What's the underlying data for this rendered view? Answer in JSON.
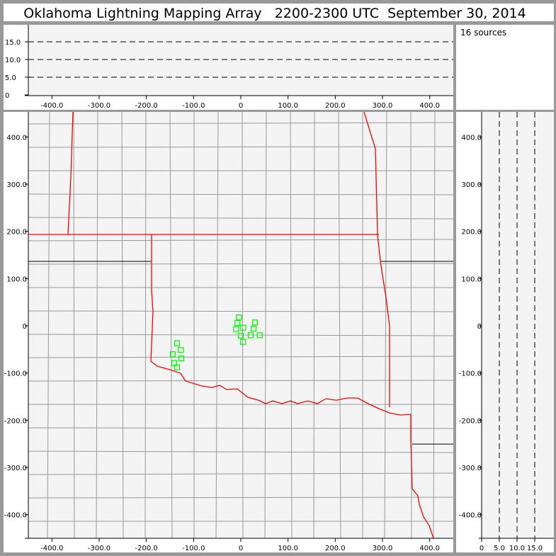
{
  "title": "Oklahoma Lightning Mapping Array   2200-2300 UTC  September 30, 2014",
  "source_count_label": "16 sources",
  "colors": {
    "frame": "#999999",
    "plot_bg": "#f4f4f4",
    "state_border": "#ff0000",
    "county_border": "#999999",
    "source_marker": "#00ff00"
  },
  "chart_data": [
    {
      "type": "scatter",
      "panel": "plan-view",
      "xlim": [
        -460,
        440
      ],
      "ylim": [
        -445,
        445
      ],
      "xticks": [
        "-400.0",
        "-300.0",
        "-200.0",
        "-100.0",
        "0",
        "100.0",
        "200.0",
        "300.0",
        "400.0"
      ],
      "xtick_values": [
        -400,
        -300,
        -200,
        -100,
        0,
        100,
        200,
        300,
        400
      ],
      "yticks": [
        "400.0",
        "300.0",
        "200.0",
        "100.0",
        "0",
        "-100.0",
        "-200.0",
        "-300.0",
        "-400.0"
      ],
      "ytick_values": [
        400,
        300,
        200,
        100,
        0,
        -100,
        -200,
        -300,
        -400
      ],
      "marker": "square-outline",
      "points": [
        [
          -135,
          -37
        ],
        [
          -127,
          -51
        ],
        [
          -144,
          -60
        ],
        [
          -126,
          -69
        ],
        [
          -141,
          -79
        ],
        [
          -135,
          -88
        ],
        [
          -4,
          18
        ],
        [
          -7,
          6
        ],
        [
          30,
          7
        ],
        [
          -10,
          -7
        ],
        [
          5,
          -4
        ],
        [
          27,
          -6
        ],
        [
          0,
          -21
        ],
        [
          21,
          -20
        ],
        [
          40,
          -20
        ],
        [
          5,
          -34
        ]
      ]
    },
    {
      "type": "scatter",
      "panel": "east-west-altitude",
      "xlim": [
        -460,
        440
      ],
      "ylim": [
        0,
        20
      ],
      "yticks": [
        "0",
        "5.0",
        "10.0",
        "15.0"
      ],
      "ytick_values": [
        0,
        5,
        10,
        15
      ],
      "xticks": [
        "-400.0",
        "-300.0",
        "-200.0",
        "-100.0",
        "0",
        "100.0",
        "200.0",
        "300.0",
        "400.0"
      ],
      "grid": "dashed horizontal at 5, 10, 15",
      "points": []
    },
    {
      "type": "scatter",
      "panel": "altitude-north-south",
      "xlim": [
        0,
        20
      ],
      "ylim": [
        -445,
        445
      ],
      "xticks": [
        "0",
        "5.0",
        "10.0",
        "15.0"
      ],
      "xtick_values": [
        0,
        5,
        10,
        15
      ],
      "yticks": [
        "400.0",
        "300.0",
        "200.0",
        "100.0",
        "0",
        "-100.0",
        "-200.0",
        "-300.0",
        "-400.0"
      ],
      "grid": "dashed vertical at 5, 10, 15",
      "points": []
    }
  ]
}
